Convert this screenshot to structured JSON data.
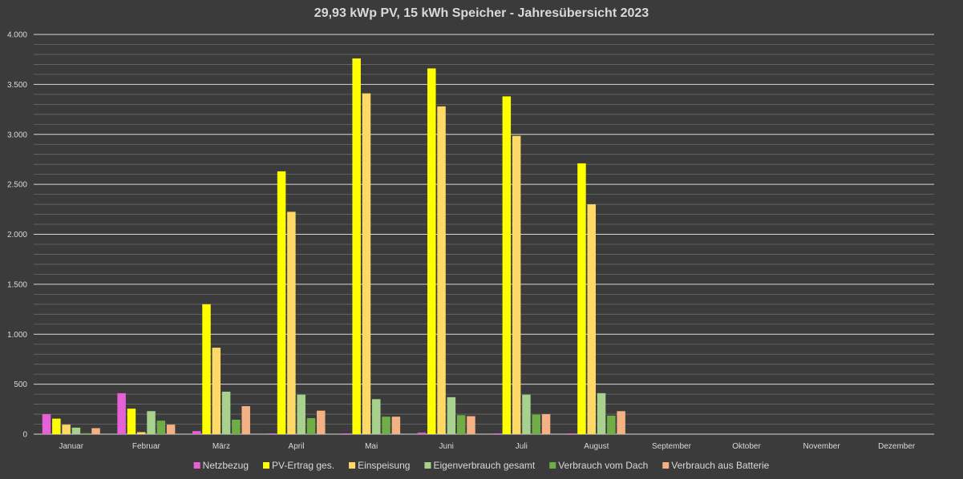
{
  "chart_data": {
    "type": "bar",
    "title": "29,93 kWp PV, 15 kWh Speicher - Jahresübersicht 2023",
    "xlabel": "",
    "ylabel": "",
    "ylim": [
      0,
      4000
    ],
    "yticks": [
      0,
      500,
      1000,
      1500,
      2000,
      2500,
      3000,
      3500,
      4000
    ],
    "ytick_labels": [
      "0",
      "500",
      "1.000",
      "1.500",
      "2.000",
      "2.500",
      "3.000",
      "3.500",
      "4.000"
    ],
    "grid": true,
    "legend_position": "bottom",
    "categories": [
      "Januar",
      "Februar",
      "März",
      "April",
      "Mai",
      "Juni",
      "Juli",
      "August",
      "September",
      "Oktober",
      "November",
      "Dezember"
    ],
    "series": [
      {
        "name": "Netzbezug",
        "color": "#e860d8",
        "values": [
          200,
          410,
          30,
          8,
          8,
          15,
          8,
          8,
          null,
          null,
          null,
          null
        ]
      },
      {
        "name": "PV-Ertrag ges.",
        "color": "#ffff00",
        "values": [
          155,
          255,
          1300,
          2630,
          3760,
          3660,
          3380,
          2710,
          null,
          null,
          null,
          null
        ]
      },
      {
        "name": "Einspeisung",
        "color": "#ffd966",
        "values": [
          95,
          20,
          865,
          2225,
          3410,
          3280,
          2985,
          2300,
          null,
          null,
          null,
          null
        ]
      },
      {
        "name": "Eigenverbrauch gesamt",
        "color": "#a9d18e",
        "values": [
          65,
          230,
          425,
          395,
          350,
          370,
          395,
          410,
          null,
          null,
          null,
          null
        ]
      },
      {
        "name": "Verbrauch vom Dach",
        "color": "#70ad47",
        "values": [
          10,
          135,
          145,
          160,
          175,
          190,
          195,
          185,
          null,
          null,
          null,
          null
        ]
      },
      {
        "name": "Verbrauch aus Batterie",
        "color": "#f4b183",
        "values": [
          60,
          95,
          280,
          235,
          175,
          180,
          200,
          230,
          null,
          null,
          null,
          null
        ]
      }
    ]
  }
}
